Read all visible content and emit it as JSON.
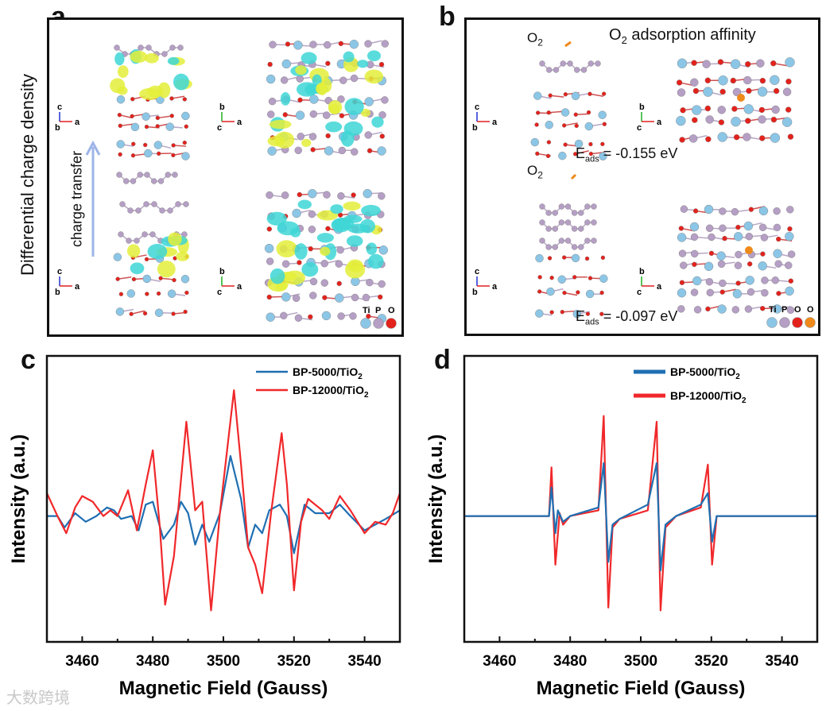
{
  "panels": {
    "a": {
      "letter": "a",
      "side_label": "Differential charge density",
      "arrow_label": "charge transfer",
      "triads": [
        {
          "v": "c",
          "d": "b",
          "h": "a"
        },
        {
          "v": "b",
          "d": "c",
          "h": "a"
        },
        {
          "v": "c",
          "d": "b",
          "h": "a"
        },
        {
          "v": "b",
          "d": "c",
          "h": "a"
        }
      ],
      "legend": [
        "Ti",
        "P",
        "O"
      ]
    },
    "b": {
      "letter": "b",
      "title_main": "O",
      "title_sub": "2",
      "title_rest": " adsorption affinity",
      "o2_main": "O",
      "o2_sub": "2",
      "eads_top": {
        "E": "E",
        "sub": "ads",
        "value": " = -0.155 eV"
      },
      "eads_bottom": {
        "E": "E",
        "sub": "ads",
        "value": " = -0.097 eV"
      },
      "triads": [
        {
          "v": "c",
          "d": "b",
          "h": "a"
        },
        {
          "v": "b",
          "d": "c",
          "h": "a"
        },
        {
          "v": "c",
          "d": "b",
          "h": "a"
        },
        {
          "v": "b",
          "d": "c",
          "h": "a"
        }
      ],
      "legend": [
        "Ti",
        "P",
        "O",
        "O"
      ]
    },
    "c": {
      "letter": "c"
    },
    "d": {
      "letter": "d"
    }
  },
  "colors": {
    "Ti": "#8cc6e6",
    "P": "#b59fc4",
    "O": "#e3221c",
    "O_ads": "#ee8a1c",
    "iso_yellow": "#e3ee3a",
    "iso_cyan": "#3ed6d6",
    "series_blue": "#1f6fb2",
    "series_red": "#f0282a",
    "arrow": "#9db4e8"
  },
  "watermark": "大数跨境",
  "chart_data": [
    {
      "type": "line",
      "panel": "c",
      "xlabel": "Magnetic Field (Gauss)",
      "ylabel": "Intensity (a.u.)",
      "xlim": [
        3450,
        3550
      ],
      "ylim": [
        0,
        100
      ],
      "xticks": [
        3460,
        3480,
        3500,
        3520,
        3540
      ],
      "grid": false,
      "legend_placement": "top-right",
      "series": [
        {
          "name": "BP-5000/TiO",
          "name_sub": "2",
          "color": "#1f6fb2",
          "points": [
            [
              3450,
              44
            ],
            [
              3453,
              44
            ],
            [
              3455,
              40
            ],
            [
              3458,
              45
            ],
            [
              3461,
              42
            ],
            [
              3464,
              44
            ],
            [
              3467,
              47
            ],
            [
              3469,
              46
            ],
            [
              3471,
              43
            ],
            [
              3474,
              44
            ],
            [
              3476,
              39
            ],
            [
              3478,
              48
            ],
            [
              3480,
              49
            ],
            [
              3483,
              36
            ],
            [
              3486,
              41
            ],
            [
              3488,
              49
            ],
            [
              3490,
              45
            ],
            [
              3492,
              34
            ],
            [
              3494,
              41
            ],
            [
              3496,
              35
            ],
            [
              3499,
              45
            ],
            [
              3502,
              65
            ],
            [
              3505,
              50
            ],
            [
              3507,
              33
            ],
            [
              3509,
              41
            ],
            [
              3511,
              38
            ],
            [
              3513,
              46
            ],
            [
              3516,
              48
            ],
            [
              3518,
              44
            ],
            [
              3520,
              31
            ],
            [
              3523,
              48
            ],
            [
              3526,
              45
            ],
            [
              3530,
              45
            ],
            [
              3533,
              48
            ],
            [
              3536,
              44
            ],
            [
              3540,
              39
            ],
            [
              3543,
              41
            ],
            [
              3546,
              43
            ],
            [
              3550,
              46
            ]
          ]
        },
        {
          "name": "BP-12000/TiO",
          "name_sub": "2",
          "color": "#f0282a",
          "points": [
            [
              3450,
              52
            ],
            [
              3453,
              44
            ],
            [
              3455.5,
              38
            ],
            [
              3458,
              47
            ],
            [
              3460,
              51
            ],
            [
              3463,
              49
            ],
            [
              3466,
              44
            ],
            [
              3468,
              46
            ],
            [
              3470,
              44
            ],
            [
              3473,
              53
            ],
            [
              3475.5,
              39
            ],
            [
              3478,
              55
            ],
            [
              3480,
              67
            ],
            [
              3482,
              40
            ],
            [
              3483.5,
              13
            ],
            [
              3486,
              30
            ],
            [
              3489.5,
              77
            ],
            [
              3492,
              46
            ],
            [
              3494,
              49
            ],
            [
              3496.5,
              11
            ],
            [
              3499,
              45
            ],
            [
              3503,
              88
            ],
            [
              3505,
              62
            ],
            [
              3507,
              33
            ],
            [
              3509,
              27
            ],
            [
              3511,
              17
            ],
            [
              3513.5,
              45
            ],
            [
              3516.5,
              73
            ],
            [
              3518,
              55
            ],
            [
              3520,
              18
            ],
            [
              3522,
              42
            ],
            [
              3524,
              50
            ],
            [
              3528,
              46
            ],
            [
              3530,
              43
            ],
            [
              3533,
              51
            ],
            [
              3536,
              46
            ],
            [
              3540,
              38
            ],
            [
              3543,
              42
            ],
            [
              3546,
              41
            ],
            [
              3548,
              45
            ],
            [
              3550,
              52
            ]
          ]
        }
      ]
    },
    {
      "type": "line",
      "panel": "d",
      "xlabel": "Magnetic Field (Gauss)",
      "ylabel": "Intensity (a.u.)",
      "xlim": [
        3450,
        3550
      ],
      "ylim": [
        0,
        100
      ],
      "xticks": [
        3460,
        3480,
        3500,
        3520,
        3540
      ],
      "grid": false,
      "legend_placement": "top-right",
      "series": [
        {
          "name": "BP-12000/TiO",
          "name_sub": "2",
          "color": "#f0282a",
          "points": [
            [
              3450,
              44
            ],
            [
              3474,
              44
            ],
            [
              3474.7,
              61
            ],
            [
              3475.8,
              27
            ],
            [
              3477,
              45
            ],
            [
              3478,
              41
            ],
            [
              3480,
              44
            ],
            [
              3488,
              46
            ],
            [
              3489.5,
              79
            ],
            [
              3490.8,
              12
            ],
            [
              3492,
              40
            ],
            [
              3494,
              43
            ],
            [
              3502,
              46
            ],
            [
              3504.5,
              77
            ],
            [
              3505.6,
              11
            ],
            [
              3507,
              40
            ],
            [
              3510,
              44
            ],
            [
              3517,
              47
            ],
            [
              3519,
              62
            ],
            [
              3520.2,
              27
            ],
            [
              3521.5,
              44
            ],
            [
              3550,
              44
            ]
          ]
        },
        {
          "name": "BP-5000/TiO",
          "name_sub": "2",
          "color": "#1f6fb2",
          "points": [
            [
              3450,
              44
            ],
            [
              3474,
              44
            ],
            [
              3474.7,
              54
            ],
            [
              3475.8,
              38
            ],
            [
              3476.5,
              46
            ],
            [
              3478,
              42
            ],
            [
              3480,
              44
            ],
            [
              3488,
              47
            ],
            [
              3489.5,
              62.5
            ],
            [
              3490.8,
              28
            ],
            [
              3492,
              41
            ],
            [
              3494,
              43
            ],
            [
              3502,
              48
            ],
            [
              3504.5,
              62.5
            ],
            [
              3505.6,
              25
            ],
            [
              3507,
              41
            ],
            [
              3510,
              44
            ],
            [
              3517,
              48
            ],
            [
              3519,
              52
            ],
            [
              3520.2,
              35
            ],
            [
              3521.5,
              44
            ],
            [
              3550,
              44
            ]
          ]
        }
      ]
    }
  ]
}
